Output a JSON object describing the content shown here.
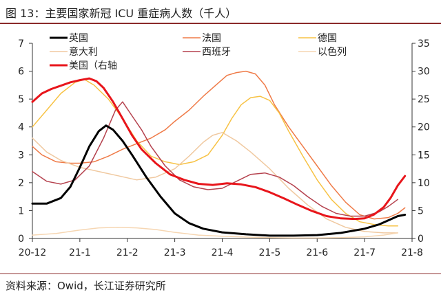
{
  "header": {
    "title": "图 13：主要国家新冠 ICU 重症病人数（千人）"
  },
  "footer": {
    "source": "资料来源：Owid，长江证券研究所"
  },
  "chart_data": {
    "type": "line",
    "title": "图 13：主要国家新冠 ICU 重症病人数（千人）",
    "xlabel": "",
    "ylabel": "",
    "x_ticks": [
      "20-12",
      "21-1",
      "21-2",
      "21-3",
      "21-4",
      "21-5",
      "21-6",
      "21-7",
      "21-8"
    ],
    "x_range": [
      "20-12",
      "21-8"
    ],
    "y_left": {
      "ticks": [
        0,
        1,
        2,
        3,
        4,
        5,
        6,
        7
      ],
      "ylim": [
        0,
        7
      ]
    },
    "y_right": {
      "ticks": [
        0,
        5,
        10,
        15,
        20,
        25,
        30,
        35
      ],
      "ylim": [
        0,
        35
      ]
    },
    "grid": false,
    "legend_placement": "top, three columns",
    "series": [
      {
        "name": "英国",
        "axis": "left",
        "color": "#000000",
        "width": 3,
        "x": [
          0,
          0.3,
          0.6,
          0.8,
          1.0,
          1.2,
          1.4,
          1.55,
          1.7,
          1.9,
          2.1,
          2.4,
          2.7,
          3.0,
          3.3,
          3.6,
          4.0,
          4.5,
          5.0,
          5.5,
          6.0,
          6.5,
          7.0,
          7.3,
          7.5,
          7.7,
          7.85
        ],
        "values": [
          1.25,
          1.25,
          1.45,
          1.85,
          2.55,
          3.3,
          3.85,
          4.05,
          3.9,
          3.5,
          3.0,
          2.2,
          1.5,
          0.9,
          0.55,
          0.35,
          0.22,
          0.15,
          0.1,
          0.1,
          0.12,
          0.2,
          0.35,
          0.5,
          0.65,
          0.8,
          0.85
        ]
      },
      {
        "name": "法国",
        "axis": "left",
        "color": "#ef7a47",
        "width": 1.5,
        "x": [
          0,
          0.2,
          0.5,
          0.8,
          1.0,
          1.3,
          1.6,
          1.9,
          2.2,
          2.5,
          2.8,
          3.0,
          3.3,
          3.6,
          3.9,
          4.1,
          4.3,
          4.5,
          4.7,
          4.9,
          5.1,
          5.4,
          5.7,
          6.0,
          6.3,
          6.6,
          6.9,
          7.2,
          7.5,
          7.7,
          7.85
        ],
        "values": [
          3.3,
          3.0,
          2.75,
          2.7,
          2.7,
          2.75,
          2.95,
          3.2,
          3.4,
          3.6,
          3.9,
          4.2,
          4.6,
          5.1,
          5.55,
          5.85,
          5.95,
          6.0,
          5.9,
          5.5,
          4.8,
          4.0,
          3.3,
          2.6,
          1.9,
          1.3,
          0.85,
          0.7,
          0.75,
          0.9,
          1.1
        ]
      },
      {
        "name": "德国",
        "axis": "left",
        "color": "#f7c244",
        "width": 1.5,
        "x": [
          0,
          0.3,
          0.6,
          0.9,
          1.1,
          1.3,
          1.6,
          1.9,
          2.2,
          2.5,
          2.8,
          3.1,
          3.4,
          3.7,
          4.0,
          4.2,
          4.4,
          4.6,
          4.8,
          5.0,
          5.2,
          5.4,
          5.7,
          6.0,
          6.3,
          6.6,
          6.9,
          7.2,
          7.5,
          7.7
        ],
        "values": [
          4.0,
          4.6,
          5.2,
          5.6,
          5.7,
          5.5,
          5.0,
          4.3,
          3.5,
          2.95,
          2.75,
          2.65,
          2.75,
          3.0,
          3.7,
          4.3,
          4.8,
          5.05,
          5.1,
          4.95,
          4.5,
          3.85,
          2.95,
          2.1,
          1.4,
          0.9,
          0.6,
          0.5,
          0.45,
          0.45
        ]
      },
      {
        "name": "意大利",
        "axis": "left",
        "color": "#f0c9a0",
        "width": 1.5,
        "x": [
          0,
          0.3,
          0.6,
          1.0,
          1.4,
          1.8,
          2.2,
          2.6,
          3.0,
          3.3,
          3.6,
          3.8,
          4.0,
          4.3,
          4.6,
          5.0,
          5.4,
          5.8,
          6.2,
          6.6,
          7.0,
          7.4,
          7.7
        ],
        "values": [
          3.6,
          3.1,
          2.8,
          2.55,
          2.4,
          2.25,
          2.1,
          2.2,
          2.5,
          2.95,
          3.45,
          3.7,
          3.8,
          3.5,
          3.1,
          2.5,
          1.8,
          1.2,
          0.7,
          0.4,
          0.25,
          0.2,
          0.2
        ]
      },
      {
        "name": "西班牙",
        "axis": "left",
        "color": "#b5424e",
        "width": 1.5,
        "x": [
          0,
          0.3,
          0.6,
          0.9,
          1.2,
          1.5,
          1.75,
          1.9,
          2.1,
          2.3,
          2.5,
          2.8,
          3.1,
          3.4,
          3.7,
          4.0,
          4.3,
          4.6,
          4.9,
          5.2,
          5.5,
          5.8,
          6.1,
          6.4,
          6.7,
          7.0,
          7.3,
          7.5,
          7.7
        ],
        "values": [
          2.4,
          2.05,
          1.95,
          2.1,
          2.6,
          3.6,
          4.6,
          4.9,
          4.4,
          3.9,
          3.3,
          2.6,
          2.1,
          1.85,
          1.75,
          1.8,
          2.05,
          2.3,
          2.35,
          2.2,
          1.9,
          1.5,
          1.15,
          0.9,
          0.8,
          0.8,
          0.95,
          1.15,
          1.4
        ]
      },
      {
        "name": "以色列",
        "axis": "left",
        "color": "#f6d6b2",
        "width": 1.5,
        "x": [
          0,
          0.5,
          1.0,
          1.4,
          1.8,
          2.2,
          2.6,
          3.0,
          3.5,
          4.0,
          4.5,
          5.0,
          5.5,
          6.0,
          6.5,
          7.0,
          7.4,
          7.7
        ],
        "values": [
          0.12,
          0.18,
          0.3,
          0.38,
          0.4,
          0.38,
          0.32,
          0.22,
          0.12,
          0.08,
          0.05,
          0.03,
          0.02,
          0.02,
          0.03,
          0.06,
          0.12,
          0.2
        ]
      },
      {
        "name": "美国（右轴",
        "axis": "right",
        "color": "#e8151b",
        "width": 3,
        "x": [
          0,
          0.2,
          0.4,
          0.6,
          0.8,
          1.0,
          1.2,
          1.35,
          1.5,
          1.7,
          1.9,
          2.1,
          2.3,
          2.6,
          2.9,
          3.2,
          3.5,
          3.8,
          4.1,
          4.4,
          4.7,
          5.0,
          5.3,
          5.6,
          5.9,
          6.2,
          6.5,
          6.8,
          7.0,
          7.2,
          7.4,
          7.55,
          7.7,
          7.85
        ],
        "values": [
          24.5,
          26.0,
          26.8,
          27.4,
          28.0,
          28.4,
          28.7,
          28.2,
          27.0,
          24.5,
          21.5,
          18.5,
          16.0,
          13.5,
          11.5,
          10.5,
          9.8,
          9.6,
          9.9,
          9.7,
          9.2,
          8.3,
          7.2,
          6.0,
          4.9,
          4.0,
          3.6,
          3.5,
          3.6,
          4.3,
          5.6,
          7.3,
          9.5,
          11.2
        ]
      }
    ]
  }
}
